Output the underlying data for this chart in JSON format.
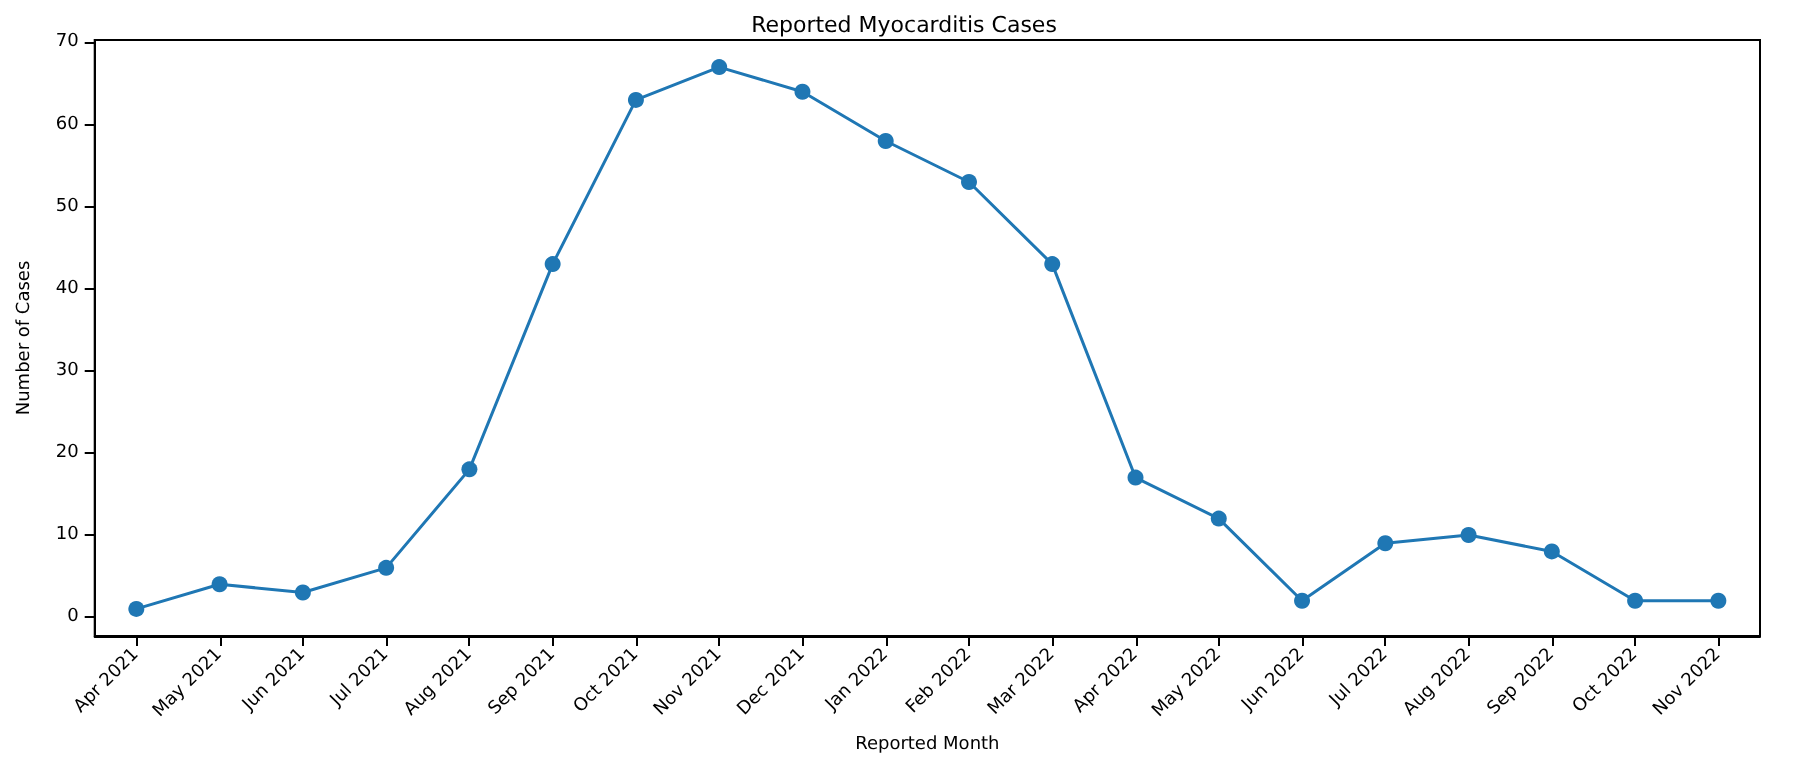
{
  "chart_data": {
    "type": "line",
    "title": "Reported Myocarditis Cases",
    "xlabel": "Reported Month",
    "ylabel": "Number of Cases",
    "categories": [
      "Apr 2021",
      "May 2021",
      "Jun 2021",
      "Jul 2021",
      "Aug 2021",
      "Sep 2021",
      "Oct 2021",
      "Nov 2021",
      "Dec 2021",
      "Jan 2022",
      "Feb 2022",
      "Mar 2022",
      "Apr 2022",
      "May 2022",
      "Jun 2022",
      "Jul 2022",
      "Aug 2022",
      "Sep 2022",
      "Oct 2022",
      "Nov 2022"
    ],
    "series": [
      {
        "color": "#1f77b4",
        "values": [
          1,
          4,
          3,
          6,
          18,
          43,
          63,
          67,
          64,
          58,
          53,
          43,
          17,
          12,
          2,
          9,
          10,
          8,
          2,
          2
        ]
      }
    ],
    "ylim": [
      -2.3,
      70.3
    ],
    "yticks": [
      0,
      10,
      20,
      30,
      40,
      50,
      60,
      70
    ],
    "grid": false,
    "marker": "circle",
    "line_style": "solid"
  }
}
